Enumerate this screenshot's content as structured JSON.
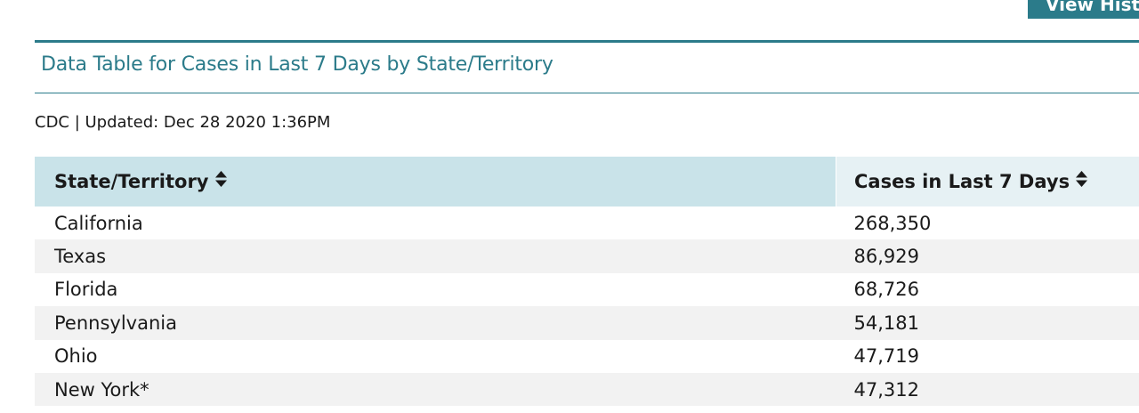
{
  "top_button": {
    "label": "View Hist"
  },
  "table_title": "Data Table for Cases in Last 7 Days by State/Territory",
  "source_line": "CDC | Updated: Dec 28 2020 1:36PM",
  "table": {
    "columns": [
      {
        "label": "State/Territory",
        "icon": "sort-icon"
      },
      {
        "label": "Cases in Last 7 Days",
        "icon": "sort-icon"
      }
    ],
    "rows": [
      {
        "state": "California",
        "cases": "268,350"
      },
      {
        "state": "Texas",
        "cases": "86,929"
      },
      {
        "state": "Florida",
        "cases": "68,726"
      },
      {
        "state": "Pennsylvania",
        "cases": "54,181"
      },
      {
        "state": "Ohio",
        "cases": "47,719"
      },
      {
        "state": "New York*",
        "cases": "47,312"
      }
    ]
  },
  "colors": {
    "accent": "#2b7b8a",
    "header_bg": "#c9e3e9",
    "stripe_bg": "#f2f2f2"
  }
}
